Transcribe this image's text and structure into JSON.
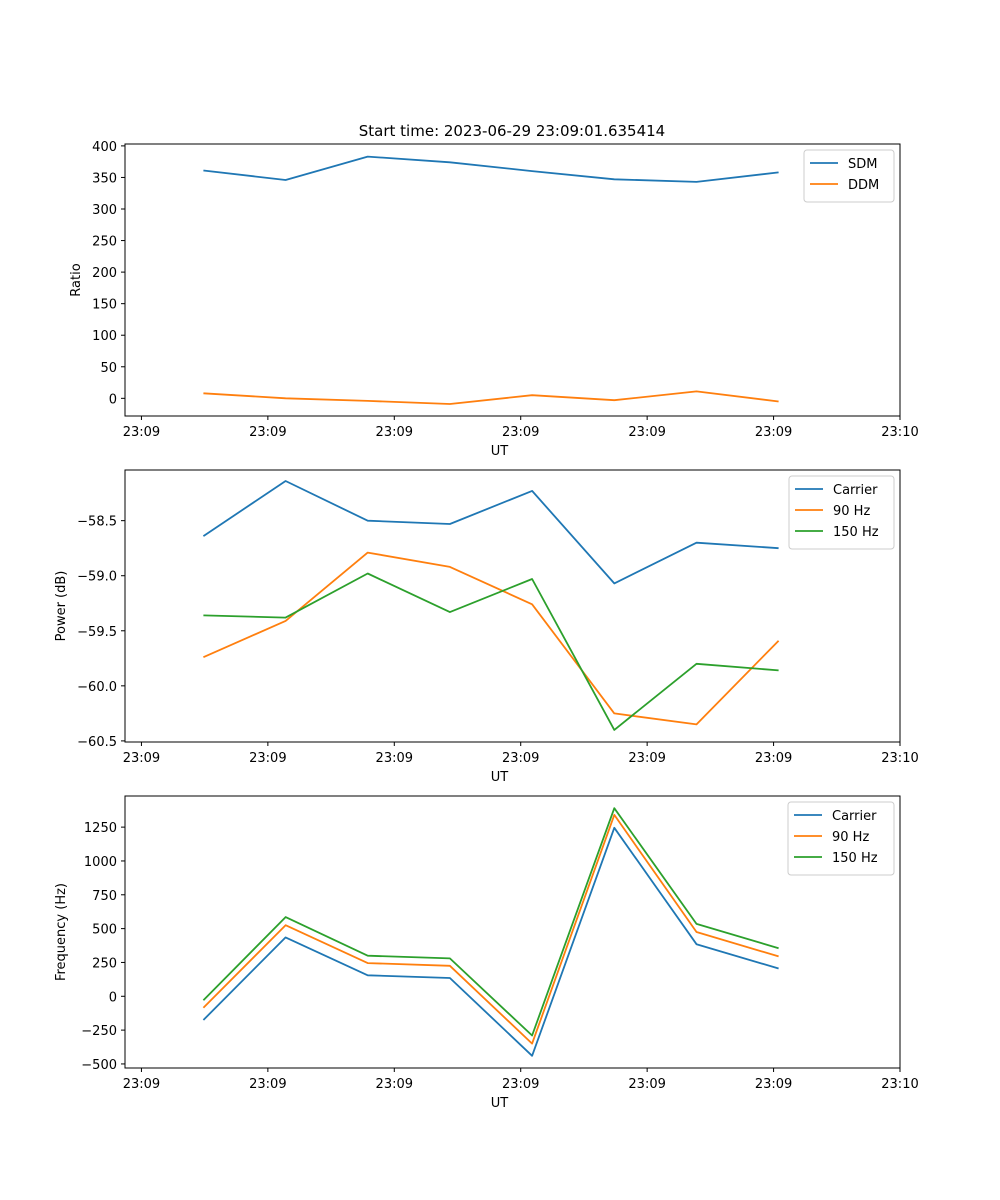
{
  "figure": {
    "title": "Start time: 2023-06-29 23:09:01.635414"
  },
  "colors": {
    "blue": "#1f77b4",
    "orange": "#ff7f0e",
    "green": "#2ca02c"
  },
  "chart_data": [
    {
      "type": "line",
      "xlabel": "UT",
      "ylabel": "Ratio",
      "x_ticks": [
        {
          "value": 0,
          "label": "23:09"
        },
        {
          "value": 1,
          "label": "23:09"
        },
        {
          "value": 2,
          "label": "23:09"
        },
        {
          "value": 3,
          "label": "23:09"
        },
        {
          "value": 4,
          "label": "23:09"
        },
        {
          "value": 5,
          "label": "23:09"
        },
        {
          "value": 6,
          "label": "23:10"
        }
      ],
      "xlim": [
        -0.13,
        6.0
      ],
      "ylim": [
        -28,
        403
      ],
      "y_ticks": [
        0,
        50,
        100,
        150,
        200,
        250,
        300,
        350,
        400
      ],
      "y_tick_labels": [
        "0",
        "50",
        "100",
        "150",
        "200",
        "250",
        "300",
        "350",
        "400"
      ],
      "legend_position": "top-right",
      "x": [
        0.49,
        1.14,
        1.79,
        2.44,
        3.09,
        3.74,
        4.39,
        5.04
      ],
      "series": [
        {
          "name": "SDM",
          "color": "blue",
          "values": [
            361,
            346,
            383,
            374,
            360,
            347,
            343,
            358
          ]
        },
        {
          "name": "DDM",
          "color": "orange",
          "values": [
            8,
            0,
            -4,
            -9,
            5,
            -3,
            11,
            -5
          ]
        }
      ]
    },
    {
      "type": "line",
      "xlabel": "UT",
      "ylabel": "Power (dB)",
      "x_ticks": [
        {
          "value": 0,
          "label": "23:09"
        },
        {
          "value": 1,
          "label": "23:09"
        },
        {
          "value": 2,
          "label": "23:09"
        },
        {
          "value": 3,
          "label": "23:09"
        },
        {
          "value": 4,
          "label": "23:09"
        },
        {
          "value": 5,
          "label": "23:09"
        },
        {
          "value": 6,
          "label": "23:10"
        }
      ],
      "xlim": [
        -0.13,
        6.0
      ],
      "ylim": [
        -60.51,
        -58.04
      ],
      "y_ticks": [
        -60.5,
        -60.0,
        -59.5,
        -59.0,
        -58.5
      ],
      "y_tick_labels": [
        "−60.5",
        "−60.0",
        "−59.5",
        "−59.0",
        "−58.5"
      ],
      "legend_position": "top-right",
      "x": [
        0.49,
        1.14,
        1.79,
        2.44,
        3.09,
        3.74,
        4.39,
        5.04
      ],
      "series": [
        {
          "name": "Carrier",
          "color": "blue",
          "values": [
            -58.64,
            -58.14,
            -58.5,
            -58.53,
            -58.23,
            -59.07,
            -58.7,
            -58.75
          ]
        },
        {
          "name": "90 Hz",
          "color": "orange",
          "values": [
            -59.74,
            -59.41,
            -58.79,
            -58.92,
            -59.26,
            -60.25,
            -60.35,
            -59.59
          ]
        },
        {
          "name": "150 Hz",
          "color": "green",
          "values": [
            -59.36,
            -59.38,
            -58.98,
            -59.33,
            -59.03,
            -60.4,
            -59.8,
            -59.86
          ]
        }
      ]
    },
    {
      "type": "line",
      "xlabel": "UT",
      "ylabel": "Frequency (Hz)",
      "x_ticks": [
        {
          "value": 0,
          "label": "23:09"
        },
        {
          "value": 1,
          "label": "23:09"
        },
        {
          "value": 2,
          "label": "23:09"
        },
        {
          "value": 3,
          "label": "23:09"
        },
        {
          "value": 4,
          "label": "23:09"
        },
        {
          "value": 5,
          "label": "23:09"
        },
        {
          "value": 6,
          "label": "23:10"
        }
      ],
      "xlim": [
        -0.13,
        6.0
      ],
      "ylim": [
        -530,
        1480
      ],
      "y_ticks": [
        -500,
        -250,
        0,
        250,
        500,
        750,
        1000,
        1250
      ],
      "y_tick_labels": [
        "−500",
        "−250",
        "0",
        "250",
        "500",
        "750",
        "1000",
        "1250"
      ],
      "legend_position": "top-right",
      "x": [
        0.49,
        1.14,
        1.79,
        2.44,
        3.09,
        3.74,
        4.39,
        5.04
      ],
      "series": [
        {
          "name": "Carrier",
          "color": "blue",
          "values": [
            -175,
            435,
            155,
            135,
            -440,
            1245,
            385,
            205
          ]
        },
        {
          "name": "90 Hz",
          "color": "orange",
          "values": [
            -85,
            525,
            245,
            225,
            -350,
            1340,
            475,
            295
          ]
        },
        {
          "name": "150 Hz",
          "color": "green",
          "values": [
            -30,
            585,
            300,
            280,
            -290,
            1390,
            535,
            355
          ]
        }
      ]
    }
  ]
}
